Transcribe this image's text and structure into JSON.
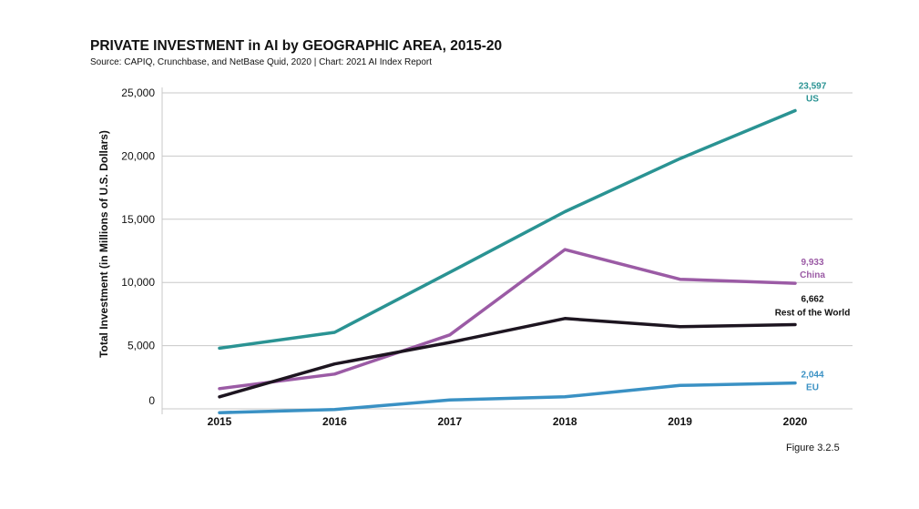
{
  "header": {
    "title": "PRIVATE INVESTMENT in AI by GEOGRAPHIC AREA, 2015-20",
    "subtitle": "Source: CAPIQ, Crunchbase, and NetBase Quid, 2020 | Chart: 2021 AI Index Report"
  },
  "footer": {
    "figure_label": "Figure 3.2.5"
  },
  "chart_data": {
    "type": "line",
    "title": "PRIVATE INVESTMENT in AI by GEOGRAPHIC AREA, 2015-20",
    "xlabel": "",
    "ylabel": "Total Investment (in Millions of U.S. Dollars)",
    "x": [
      "2015",
      "2016",
      "2017",
      "2018",
      "2019",
      "2020"
    ],
    "ylim": [
      0,
      25000
    ],
    "yticks": [
      0,
      5000,
      10000,
      15000,
      20000,
      25000
    ],
    "ytick_labels": [
      "0",
      "5,000",
      "10,000",
      "15,000",
      "20,000",
      "25,000"
    ],
    "grid": true,
    "series": [
      {
        "name": "US",
        "color": "#2a9393",
        "values": [
          4800,
          6050,
          10800,
          15600,
          19800,
          23597
        ],
        "end_label": "23,597"
      },
      {
        "name": "China",
        "color": "#9b5ba5",
        "values": [
          1600,
          2750,
          5850,
          12600,
          10250,
          9933
        ],
        "end_label": "9,933"
      },
      {
        "name": "Rest of the World",
        "color": "#1d1520",
        "values": [
          950,
          3550,
          5250,
          7150,
          6500,
          6662
        ],
        "end_label": "6,662"
      },
      {
        "name": "EU",
        "color": "#3a91c4",
        "values": [
          -300,
          -50,
          700,
          950,
          1850,
          2044
        ],
        "end_label": "2,044"
      }
    ]
  }
}
